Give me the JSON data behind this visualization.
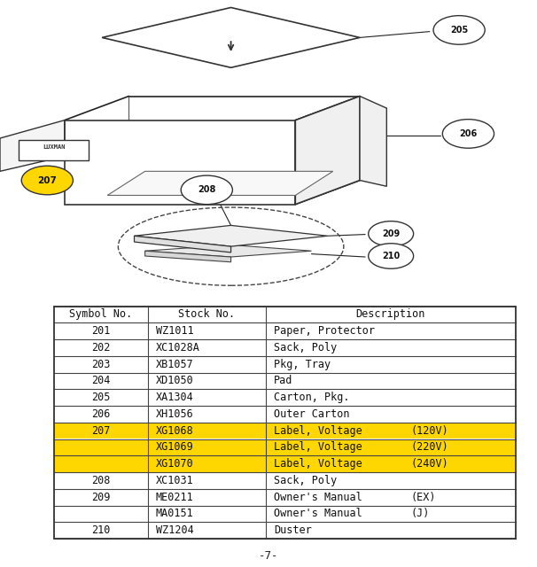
{
  "background_color": "#ffffff",
  "page_number": "-7-",
  "table": {
    "headers": [
      "Symbol No.",
      "Stock No.",
      "Description"
    ],
    "rows": [
      {
        "symbol": "201",
        "stock": "WZ1011",
        "desc1": "Paper, Protector",
        "desc2": "",
        "highlight": false
      },
      {
        "symbol": "202",
        "stock": "XC1028A",
        "desc1": "Sack, Poly",
        "desc2": "",
        "highlight": false
      },
      {
        "symbol": "203",
        "stock": "XB1057",
        "desc1": "Pkg, Tray",
        "desc2": "",
        "highlight": false
      },
      {
        "symbol": "204",
        "stock": "XD1050",
        "desc1": "Pad",
        "desc2": "",
        "highlight": false
      },
      {
        "symbol": "205",
        "stock": "XA1304",
        "desc1": "Carton, Pkg.",
        "desc2": "",
        "highlight": false
      },
      {
        "symbol": "206",
        "stock": "XH1056",
        "desc1": "Outer Carton",
        "desc2": "",
        "highlight": false
      },
      {
        "symbol": "207",
        "stock": "XG1068",
        "desc1": "Label, Voltage",
        "desc2": "(120V)",
        "highlight": true
      },
      {
        "symbol": "",
        "stock": "XG1069",
        "desc1": "Label, Voltage",
        "desc2": "(220V)",
        "highlight": true
      },
      {
        "symbol": "",
        "stock": "XG1070",
        "desc1": "Label, Voltage",
        "desc2": "(240V)",
        "highlight": true
      },
      {
        "symbol": "208",
        "stock": "XC1031",
        "desc1": "Sack, Poly",
        "desc2": "",
        "highlight": false
      },
      {
        "symbol": "209",
        "stock": "ME0211",
        "desc1": "Owner's Manual",
        "desc2": "(EX)",
        "highlight": false
      },
      {
        "symbol": "",
        "stock": "MA0151",
        "desc1": "Owner's Manual",
        "desc2": "(J)",
        "highlight": false
      },
      {
        "symbol": "210",
        "stock": "WZ1204",
        "desc1": "Duster",
        "desc2": "",
        "highlight": false
      }
    ],
    "highlight_color": "#FFD700",
    "font_size": 8.5
  },
  "diagram": {
    "label_205": "205",
    "label_206": "206",
    "label_207": "207",
    "label_208": "208",
    "label_209": "209",
    "label_210": "210"
  },
  "line_color": "#222222",
  "edge_color": "#333333"
}
